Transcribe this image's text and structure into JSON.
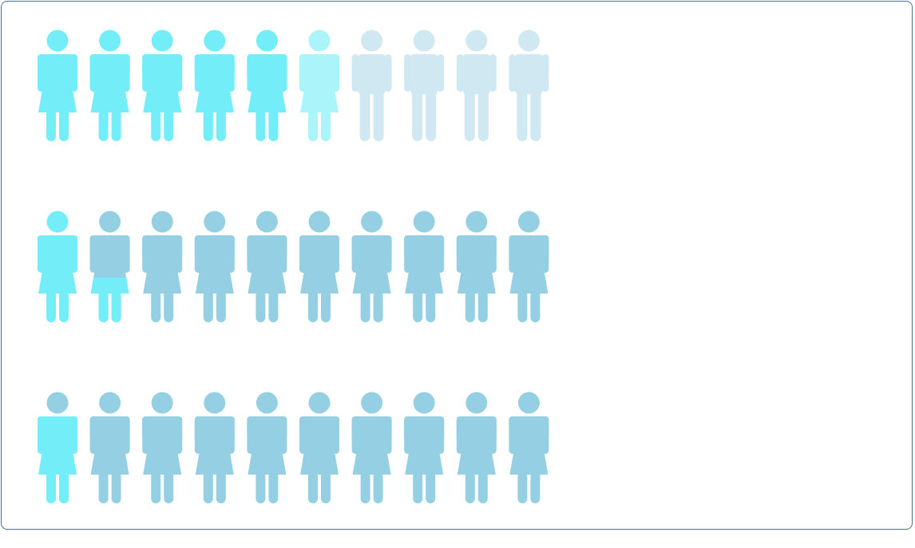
{
  "chart_data": {
    "type": "pictogram",
    "icons_per_row": 10,
    "rows": [
      {
        "filled": 6,
        "icons": [
          {
            "gender": "female",
            "state": "filled"
          },
          {
            "gender": "female",
            "state": "filled"
          },
          {
            "gender": "female",
            "state": "filled"
          },
          {
            "gender": "female",
            "state": "filled"
          },
          {
            "gender": "female",
            "state": "filled"
          },
          {
            "gender": "female",
            "state": "filled",
            "fill_opacity": 0.6
          },
          {
            "gender": "male",
            "state": "empty"
          },
          {
            "gender": "male",
            "state": "empty"
          },
          {
            "gender": "male",
            "state": "empty"
          },
          {
            "gender": "male",
            "state": "empty"
          }
        ]
      },
      {
        "filled": 1.4,
        "icons": [
          {
            "gender": "female",
            "state": "filled"
          },
          {
            "gender": "female",
            "state": "partial",
            "fill_fraction": 0.4
          },
          {
            "gender": "female",
            "state": "empty"
          },
          {
            "gender": "female",
            "state": "empty"
          },
          {
            "gender": "female",
            "state": "empty"
          },
          {
            "gender": "female",
            "state": "empty"
          },
          {
            "gender": "female",
            "state": "empty"
          },
          {
            "gender": "female",
            "state": "empty"
          },
          {
            "gender": "female",
            "state": "empty"
          },
          {
            "gender": "female",
            "state": "empty"
          }
        ]
      },
      {
        "filled": 0.8,
        "icons": [
          {
            "gender": "female",
            "state": "partial",
            "fill_fraction": 0.8
          },
          {
            "gender": "female",
            "state": "empty"
          },
          {
            "gender": "female",
            "state": "empty"
          },
          {
            "gender": "female",
            "state": "empty"
          },
          {
            "gender": "female",
            "state": "empty"
          },
          {
            "gender": "female",
            "state": "empty"
          },
          {
            "gender": "female",
            "state": "empty"
          },
          {
            "gender": "female",
            "state": "empty"
          },
          {
            "gender": "female",
            "state": "empty"
          },
          {
            "gender": "female",
            "state": "empty"
          }
        ]
      }
    ],
    "colors": {
      "filled": "#73eef8",
      "empty_row1": "#cfe8f2",
      "empty": "#95cfe3",
      "border": "#4a6fa5"
    }
  }
}
